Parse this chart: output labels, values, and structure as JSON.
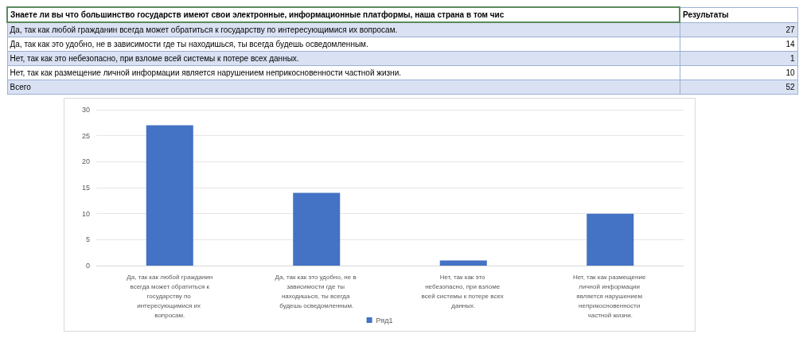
{
  "chart_data": {
    "type": "bar",
    "title": "Знаете ли вы что большинство государств имеют свои электронные, информационные платформы, наша страна в том чис",
    "categories": [
      "Да, так как любой гражданин всегда может обратиться к государству по интересующимися их вопросам.",
      "Да, так как это удобно, не в зависимости где ты находишься, ты всегда будешь осведомленным.",
      "Нет, так как это небезопасно, при взломе всей системы к потере всех данных.",
      "Нет, так как размещение личной информации является нарушением неприкосновенности частной жизни."
    ],
    "series": [
      {
        "name": "Ряд1",
        "color": "#4472c4",
        "values": [
          27,
          14,
          1,
          10
        ]
      }
    ],
    "ylim": [
      0,
      30
    ],
    "yticks": [
      0,
      5,
      10,
      15,
      20,
      25,
      30
    ],
    "grid": "y",
    "legend": "bottom",
    "annotations": [
      "Результаты",
      "Всего",
      "52",
      "27",
      "14",
      "1",
      "10"
    ]
  }
}
